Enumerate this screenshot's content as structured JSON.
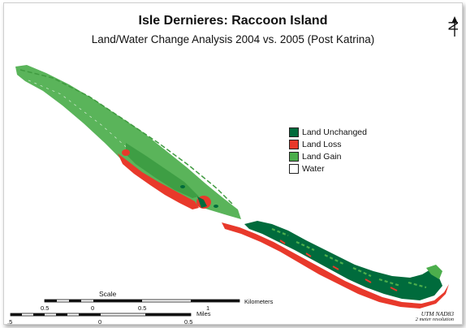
{
  "title": "Isle Dernieres:  Raccoon Island",
  "subtitle": "Land/Water Change Analysis 2004 vs. 2005 (Post Katrina)",
  "north_arrow": {
    "letter": "N",
    "icon": "north-arrow-icon"
  },
  "legend": [
    {
      "label": "Land Unchanged",
      "color": "#006b3c"
    },
    {
      "label": "Land Loss",
      "color": "#e8392b"
    },
    {
      "label": "Land Gain",
      "color": "#4cae4c"
    },
    {
      "label": "Water",
      "color": "#ffffff"
    }
  ],
  "scale": {
    "title": "Scale",
    "km_label": "Kilometers",
    "km_ticks": [
      "0.5",
      "0",
      "0.5",
      "1"
    ],
    "mi_label": "Miles",
    "mi_ticks": [
      ".5",
      "0",
      "0.5"
    ]
  },
  "credits": {
    "datum": "UTM NAD83",
    "resolution": "2 meter resolution"
  }
}
